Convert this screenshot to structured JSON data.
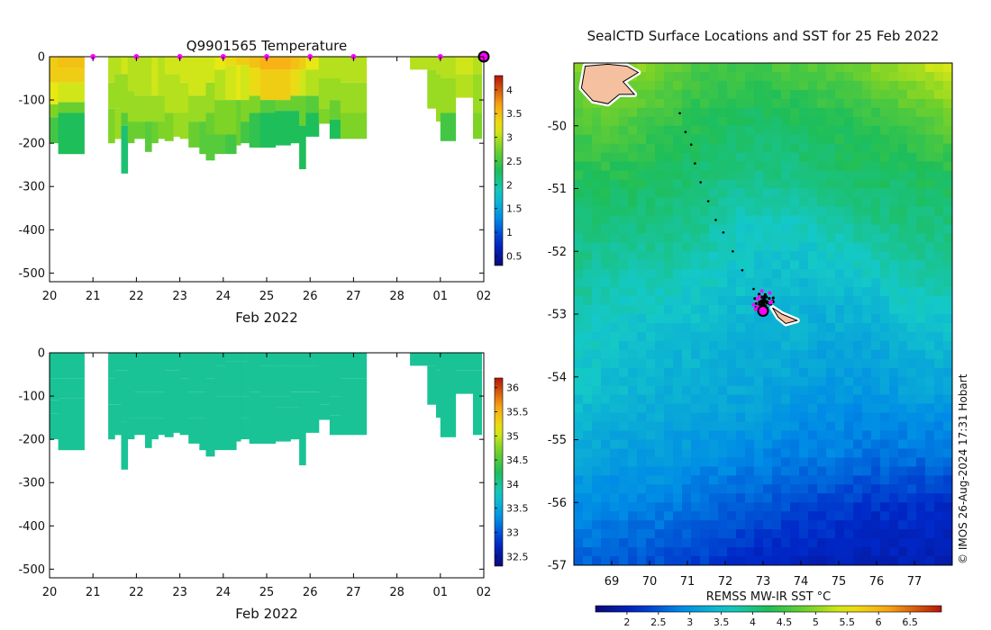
{
  "chart_data": [
    {
      "type": "heatmap",
      "title": "Q9901565  Temperature",
      "xlabel": "Feb 2022",
      "ylabel": "",
      "xtick_labels": [
        "20",
        "21",
        "22",
        "23",
        "24",
        "25",
        "26",
        "27",
        "28",
        "01",
        "02"
      ],
      "ytick_labels": [
        "0",
        "-100",
        "-200",
        "-300",
        "-400",
        "-500"
      ],
      "xlim_days": [
        20,
        30
      ],
      "ylim": [
        -520,
        0
      ],
      "colorbar": {
        "ticks": [
          "0.5",
          "1",
          "1.5",
          "2",
          "2.5",
          "3",
          "3.5",
          "4"
        ],
        "range": [
          0.3,
          4.3
        ]
      },
      "markers_days": [
        21,
        22,
        23,
        24,
        25,
        26,
        27,
        29,
        30
      ],
      "profiles": [
        {
          "t0": 20.0,
          "t1": 20.2,
          "depth": -195,
          "temp": [
            [
              -25,
              3.4
            ],
            [
              -60,
              3.4
            ],
            [
              -110,
              3.2
            ],
            [
              -140,
              2.8
            ],
            [
              -200,
              2.5
            ]
          ]
        },
        {
          "t0": 20.2,
          "t1": 20.8,
          "depth": -225,
          "temp": [
            [
              -25,
              3.5
            ],
            [
              -60,
              3.4
            ],
            [
              -105,
              3.1
            ],
            [
              -130,
              2.7
            ],
            [
              -225,
              2.3
            ]
          ]
        },
        {
          "t0": 21.35,
          "t1": 21.5,
          "depth": -200,
          "temp": [
            [
              -60,
              3.0
            ],
            [
              -120,
              2.9
            ],
            [
              -200,
              2.8
            ]
          ]
        },
        {
          "t0": 21.5,
          "t1": 21.65,
          "depth": -190,
          "temp": [
            [
              -40,
              3.0
            ],
            [
              -120,
              2.9
            ],
            [
              -190,
              2.9
            ]
          ]
        },
        {
          "t0": 21.65,
          "t1": 21.8,
          "depth": -270,
          "temp": [
            [
              -40,
              3.1
            ],
            [
              -130,
              2.9
            ],
            [
              -160,
              2.6
            ],
            [
              -270,
              2.2
            ]
          ]
        },
        {
          "t0": 21.8,
          "t1": 21.95,
          "depth": -200,
          "temp": [
            [
              -80,
              3.0
            ],
            [
              -150,
              2.9
            ],
            [
              -200,
              2.7
            ]
          ]
        },
        {
          "t0": 21.95,
          "t1": 22.2,
          "depth": -190,
          "temp": [
            [
              -90,
              3.0
            ],
            [
              -150,
              2.9
            ],
            [
              -190,
              2.7
            ]
          ]
        },
        {
          "t0": 22.2,
          "t1": 22.35,
          "depth": -220,
          "temp": [
            [
              -90,
              3.0
            ],
            [
              -150,
              2.9
            ],
            [
              -220,
              2.6
            ]
          ]
        },
        {
          "t0": 22.35,
          "t1": 22.5,
          "depth": -200,
          "temp": [
            [
              -90,
              3.1
            ],
            [
              -150,
              2.9
            ],
            [
              -200,
              2.7
            ]
          ]
        },
        {
          "t0": 22.5,
          "t1": 22.65,
          "depth": -190,
          "temp": [
            [
              -90,
              3.0
            ],
            [
              -150,
              2.9
            ],
            [
              -190,
              2.8
            ]
          ]
        },
        {
          "t0": 22.65,
          "t1": 22.85,
          "depth": -195,
          "temp": [
            [
              -40,
              3.1
            ],
            [
              -130,
              3.0
            ],
            [
              -195,
              2.8
            ]
          ]
        },
        {
          "t0": 22.85,
          "t1": 23.0,
          "depth": -185,
          "temp": [
            [
              -40,
              3.1
            ],
            [
              -130,
              3.0
            ],
            [
              -185,
              2.9
            ]
          ]
        },
        {
          "t0": 23.0,
          "t1": 23.2,
          "depth": -190,
          "temp": [
            [
              -60,
              3.1
            ],
            [
              -130,
              3.0
            ],
            [
              -190,
              2.9
            ]
          ]
        },
        {
          "t0": 23.2,
          "t1": 23.45,
          "depth": -210,
          "temp": [
            [
              -90,
              3.1
            ],
            [
              -150,
              2.9
            ],
            [
              -210,
              2.7
            ]
          ]
        },
        {
          "t0": 23.45,
          "t1": 23.6,
          "depth": -225,
          "temp": [
            [
              -90,
              3.1
            ],
            [
              -150,
              2.9
            ],
            [
              -225,
              2.6
            ]
          ]
        },
        {
          "t0": 23.6,
          "t1": 23.8,
          "depth": -240,
          "temp": [
            [
              -60,
              3.1
            ],
            [
              -130,
              2.9
            ],
            [
              -180,
              2.7
            ],
            [
              -240,
              2.6
            ]
          ]
        },
        {
          "t0": 23.8,
          "t1": 24.05,
          "depth": -225,
          "temp": [
            [
              -30,
              3.2
            ],
            [
              -100,
              3.0
            ],
            [
              -180,
              2.8
            ],
            [
              -225,
              2.6
            ]
          ]
        },
        {
          "t0": 24.05,
          "t1": 24.3,
          "depth": -225,
          "temp": [
            [
              -20,
              3.3
            ],
            [
              -100,
              3.1
            ],
            [
              -180,
              2.8
            ],
            [
              -225,
              2.5
            ]
          ]
        },
        {
          "t0": 24.3,
          "t1": 24.4,
          "depth": -205,
          "temp": [
            [
              -20,
              3.4
            ],
            [
              -100,
              3.2
            ],
            [
              -205,
              2.7
            ]
          ]
        },
        {
          "t0": 24.4,
          "t1": 24.6,
          "depth": -200,
          "temp": [
            [
              -20,
              3.4
            ],
            [
              -100,
              3.1
            ],
            [
              -150,
              2.8
            ],
            [
              -200,
              2.5
            ]
          ]
        },
        {
          "t0": 24.6,
          "t1": 24.85,
          "depth": -210,
          "temp": [
            [
              -25,
              3.5
            ],
            [
              -90,
              3.3
            ],
            [
              -130,
              2.8
            ],
            [
              -210,
              2.4
            ]
          ]
        },
        {
          "t0": 24.85,
          "t1": 25.2,
          "depth": -210,
          "temp": [
            [
              -30,
              3.6
            ],
            [
              -100,
              3.4
            ],
            [
              -130,
              2.6
            ],
            [
              -210,
              2.3
            ]
          ]
        },
        {
          "t0": 25.2,
          "t1": 25.55,
          "depth": -205,
          "temp": [
            [
              -30,
              3.6
            ],
            [
              -100,
              3.4
            ],
            [
              -125,
              2.7
            ],
            [
              -205,
              2.3
            ]
          ]
        },
        {
          "t0": 25.55,
          "t1": 25.75,
          "depth": -200,
          "temp": [
            [
              -30,
              3.5
            ],
            [
              -90,
              3.3
            ],
            [
              -125,
              2.7
            ],
            [
              -200,
              2.3
            ]
          ]
        },
        {
          "t0": 25.75,
          "t1": 25.9,
          "depth": -260,
          "temp": [
            [
              -30,
              3.4
            ],
            [
              -90,
              3.1
            ],
            [
              -160,
              2.7
            ],
            [
              -260,
              2.3
            ]
          ]
        },
        {
          "t0": 25.9,
          "t1": 26.2,
          "depth": -185,
          "temp": [
            [
              -30,
              3.2
            ],
            [
              -90,
              3.0
            ],
            [
              -130,
              2.6
            ],
            [
              -185,
              2.3
            ]
          ]
        },
        {
          "t0": 26.2,
          "t1": 26.45,
          "depth": -155,
          "temp": [
            [
              -50,
              3.0
            ],
            [
              -120,
              2.9
            ],
            [
              -155,
              2.8
            ]
          ]
        },
        {
          "t0": 26.45,
          "t1": 26.7,
          "depth": -190,
          "temp": [
            [
              -50,
              3.0
            ],
            [
              -100,
              2.9
            ],
            [
              -145,
              2.7
            ],
            [
              -190,
              2.3
            ]
          ]
        },
        {
          "t0": 26.7,
          "t1": 27.3,
          "depth": -190,
          "temp": [
            [
              -60,
              3.0
            ],
            [
              -130,
              2.9
            ],
            [
              -190,
              2.8
            ]
          ]
        },
        {
          "t0": 28.3,
          "t1": 28.7,
          "depth": -30,
          "temp": [
            [
              -30,
              3.0
            ]
          ]
        },
        {
          "t0": 28.7,
          "t1": 28.9,
          "depth": -120,
          "temp": [
            [
              -30,
              3.0
            ],
            [
              -120,
              2.9
            ]
          ]
        },
        {
          "t0": 28.9,
          "t1": 29.0,
          "depth": -150,
          "temp": [
            [
              -40,
              3.0
            ],
            [
              -150,
              2.9
            ]
          ]
        },
        {
          "t0": 29.0,
          "t1": 29.35,
          "depth": -195,
          "temp": [
            [
              -50,
              3.0
            ],
            [
              -130,
              2.9
            ],
            [
              -195,
              2.5
            ]
          ]
        },
        {
          "t0": 29.35,
          "t1": 29.75,
          "depth": -95,
          "temp": [
            [
              -40,
              3.1
            ],
            [
              -95,
              3.0
            ]
          ]
        },
        {
          "t0": 29.75,
          "t1": 29.95,
          "depth": -190,
          "temp": [
            [
              -40,
              3.0
            ],
            [
              -130,
              2.9
            ],
            [
              -190,
              2.8
            ]
          ]
        }
      ]
    },
    {
      "type": "heatmap",
      "title": "",
      "xlabel": "Feb 2022",
      "ylabel": "",
      "xtick_labels": [
        "20",
        "21",
        "22",
        "23",
        "24",
        "25",
        "26",
        "27",
        "28",
        "01",
        "02"
      ],
      "ytick_labels": [
        "0",
        "-100",
        "-200",
        "-300",
        "-400",
        "-500"
      ],
      "xlim_days": [
        20,
        30
      ],
      "ylim": [
        -520,
        0
      ],
      "colorbar": {
        "ticks": [
          "32.5",
          "33",
          "33.5",
          "34",
          "34.5",
          "35",
          "35.5",
          "36"
        ],
        "range": [
          32.3,
          36.2
        ]
      },
      "uniform_value": 34.0,
      "note_profiles_same_as_temperature": true
    },
    {
      "type": "heatmap",
      "title": "SealCTD Surface Locations and SST for 25 Feb 2022",
      "xlabel": "",
      "ylabel": "",
      "xtick_labels": [
        "69",
        "70",
        "71",
        "72",
        "73",
        "74",
        "75",
        "76",
        "77"
      ],
      "ytick_labels": [
        "-50",
        "-51",
        "-52",
        "-53",
        "-54",
        "-55",
        "-56",
        "-57"
      ],
      "xlim": [
        68.0,
        78.0
      ],
      "ylim": [
        -57.0,
        -49.0
      ],
      "colorbar": {
        "label": "REMSS MW-IR SST °C",
        "ticks": [
          "2",
          "2.5",
          "3",
          "3.5",
          "4",
          "4.5",
          "5",
          "5.5",
          "6",
          "6.5"
        ],
        "range": [
          1.5,
          7.0
        ]
      },
      "sst_field": [
        [
          5.0,
          5.2,
          4.9,
          4.6,
          4.5,
          4.6,
          4.7,
          4.9,
          5.2,
          5.5
        ],
        [
          4.6,
          4.7,
          4.5,
          4.3,
          4.2,
          4.2,
          4.3,
          4.4,
          4.6,
          4.8
        ],
        [
          4.3,
          4.3,
          4.2,
          4.1,
          4.0,
          4.0,
          4.1,
          4.2,
          4.2,
          4.3
        ],
        [
          4.0,
          4.0,
          4.0,
          3.9,
          3.6,
          3.6,
          3.7,
          3.9,
          4.0,
          4.0
        ],
        [
          3.9,
          3.7,
          3.7,
          3.6,
          3.5,
          3.4,
          3.4,
          3.5,
          3.7,
          3.8
        ],
        [
          3.7,
          3.5,
          3.4,
          3.4,
          3.3,
          3.3,
          3.2,
          3.2,
          3.4,
          3.4
        ],
        [
          3.5,
          3.4,
          3.3,
          3.2,
          3.2,
          3.1,
          3.0,
          3.0,
          3.1,
          3.1
        ],
        [
          3.2,
          3.1,
          3.1,
          3.0,
          2.9,
          2.8,
          2.8,
          2.7,
          2.7,
          2.7
        ],
        [
          2.9,
          2.8,
          2.8,
          2.6,
          2.5,
          2.4,
          2.3,
          2.2,
          2.2,
          2.1
        ],
        [
          2.6,
          2.5,
          2.4,
          2.3,
          2.1,
          2.0,
          2.0,
          2.0,
          2.0,
          2.0
        ]
      ],
      "track_lon": [
        70.8,
        70.95,
        71.1,
        71.2,
        71.35,
        71.55,
        71.75,
        71.95,
        72.2,
        72.45,
        72.75,
        72.95
      ],
      "track_lat": [
        -49.8,
        -50.1,
        -50.3,
        -50.6,
        -50.9,
        -51.2,
        -51.5,
        -51.7,
        -52.0,
        -52.3,
        -52.6,
        -52.8
      ],
      "cluster_center": [
        73.0,
        -52.8
      ],
      "last_position": [
        73.0,
        -52.95
      ],
      "land": [
        {
          "name": "heard",
          "points": [
            [
              68.3,
              -49.05
            ],
            [
              68.9,
              -49.02
            ],
            [
              69.4,
              -49.05
            ],
            [
              69.7,
              -49.15
            ],
            [
              69.3,
              -49.3
            ],
            [
              69.6,
              -49.5
            ],
            [
              69.2,
              -49.5
            ],
            [
              68.9,
              -49.65
            ],
            [
              68.5,
              -49.6
            ],
            [
              68.2,
              -49.4
            ]
          ]
        },
        {
          "name": "mcdonald",
          "points": [
            [
              73.25,
              -52.9
            ],
            [
              73.5,
              -53.0
            ],
            [
              73.9,
              -53.1
            ],
            [
              73.6,
              -53.15
            ],
            [
              73.4,
              -53.05
            ]
          ]
        }
      ]
    }
  ],
  "credit": "© IMOS 26-Aug-2024 17:31 Hobart"
}
